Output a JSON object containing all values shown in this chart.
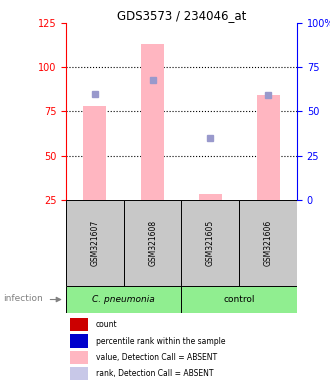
{
  "title": "GDS3573 / 234046_at",
  "samples": [
    "GSM321607",
    "GSM321608",
    "GSM321605",
    "GSM321606"
  ],
  "bar_value": [
    78,
    113,
    28,
    84
  ],
  "rank_value": [
    85,
    93,
    60,
    84
  ],
  "left_ylim": [
    25,
    125
  ],
  "left_yticks": [
    25,
    50,
    75,
    100,
    125
  ],
  "right_ylim": [
    0,
    100
  ],
  "right_yticks": [
    0,
    25,
    50,
    75,
    100
  ],
  "right_yticklabels": [
    "0",
    "25",
    "50",
    "75",
    "100%"
  ],
  "bar_color": "#FFB6C1",
  "rank_dot_color": "#9999CC",
  "grid_lines": [
    50,
    75,
    100
  ],
  "group1_label": "C. pneumonia",
  "group2_label": "control",
  "group1_color": "#90EE90",
  "group2_color": "#90EE90",
  "infection_label": "infection",
  "legend_items": [
    {
      "color": "#CC0000",
      "label": "count"
    },
    {
      "color": "#0000CC",
      "label": "percentile rank within the sample"
    },
    {
      "color": "#FFB6C1",
      "label": "value, Detection Call = ABSENT"
    },
    {
      "color": "#C8C8E8",
      "label": "rank, Detection Call = ABSENT"
    }
  ],
  "sample_box_color": "#C8C8C8",
  "left_tick_color": "red",
  "right_tick_color": "blue",
  "bar_width": 0.4
}
